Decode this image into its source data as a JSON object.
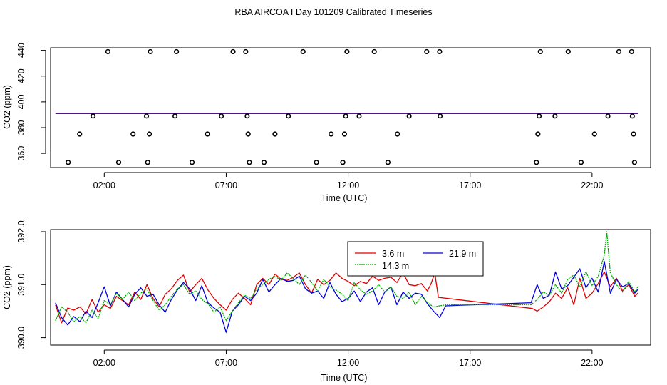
{
  "title": "RBA AIRCOA I  Day 101209  Calibrated Timeseries",
  "chart_data": [
    {
      "type": "scatter",
      "xlabel": "Time (UTC)",
      "ylabel": "CO2 (ppm)",
      "x_ticks": [
        2,
        7,
        12,
        17,
        22
      ],
      "x_tick_labels": [
        "02:00",
        "07:00",
        "12:00",
        "17:00",
        "22:00"
      ],
      "y_ticks": [
        360,
        380,
        400,
        420,
        440
      ],
      "xlim": [
        -0.2,
        24.4
      ],
      "ylim": [
        349,
        442
      ],
      "points_x_hours": [
        0.52,
        0.99,
        1.54,
        2.15,
        2.59,
        3.18,
        3.73,
        3.78,
        3.85,
        3.89,
        4.9,
        4.96,
        5.6,
        6.23,
        6.8,
        7.28,
        7.8,
        7.86,
        7.9,
        7.95,
        8.55,
        9.0,
        9.55,
        10.15,
        10.7,
        11.3,
        11.78,
        11.85,
        11.9,
        11.95,
        12.45,
        13.07,
        13.63,
        14.02,
        14.5,
        15.22,
        15.75,
        15.77,
        19.72,
        19.78,
        19.83,
        19.88,
        20.48,
        21.02,
        21.55,
        22.1,
        22.65,
        23.1,
        23.62,
        23.65,
        23.7,
        23.74
      ],
      "points_y_ppm": [
        353,
        375,
        389,
        439,
        353,
        375,
        389,
        353,
        375,
        439,
        389,
        439,
        353,
        375,
        389,
        439,
        439,
        389,
        375,
        353,
        353,
        375,
        389,
        439,
        353,
        375,
        353,
        375,
        389,
        439,
        389,
        439,
        353,
        375,
        389,
        439,
        439,
        389,
        353,
        375,
        389,
        439,
        389,
        439,
        353,
        375,
        389,
        439,
        439,
        389,
        375,
        353
      ],
      "line_level_ppm": 391
    },
    {
      "type": "line",
      "xlabel": "Time (UTC)",
      "ylabel": "CO2 (ppm)",
      "x_ticks": [
        2,
        7,
        12,
        17,
        22
      ],
      "x_tick_labels": [
        "02:00",
        "07:00",
        "12:00",
        "17:00",
        "22:00"
      ],
      "y_ticks": [
        390.0,
        391.0,
        392.0
      ],
      "y_tick_labels": [
        "390.0",
        "391.0",
        "392.0"
      ],
      "xlim": [
        -0.2,
        24.4
      ],
      "ylim": [
        389.86,
        392.04
      ],
      "legend": {
        "placement": "top-center",
        "entries": [
          "3.6 m",
          "21.9 m",
          "14.3 m"
        ]
      },
      "series": [
        {
          "name": "3.6 m",
          "color": "#dd0000",
          "x": [
            0,
            0.25,
            0.5,
            0.75,
            1.0,
            1.25,
            1.5,
            1.75,
            2.0,
            2.25,
            2.5,
            2.75,
            3.0,
            3.25,
            3.5,
            3.75,
            4.0,
            4.25,
            4.5,
            4.75,
            5.0,
            5.25,
            5.5,
            5.75,
            6.0,
            6.25,
            6.5,
            6.75,
            7.0,
            7.25,
            7.5,
            7.75,
            8.0,
            8.25,
            8.5,
            8.75,
            9.0,
            9.25,
            9.5,
            9.75,
            10.0,
            10.25,
            10.5,
            10.75,
            11.0,
            11.25,
            11.5,
            11.75,
            12.0,
            12.25,
            12.5,
            12.75,
            13.0,
            13.25,
            13.5,
            13.75,
            14.0,
            14.25,
            14.5,
            14.75,
            15.0,
            15.25,
            15.4,
            15.55,
            15.7,
            19.55,
            19.75,
            20.0,
            20.25,
            20.5,
            20.75,
            21.0,
            21.25,
            21.5,
            21.75,
            22.0,
            22.25,
            22.5,
            22.75,
            23.0,
            23.25,
            23.5,
            23.75,
            23.9
          ],
          "y": [
            390.62,
            390.28,
            390.56,
            390.52,
            390.58,
            390.45,
            390.72,
            390.48,
            390.62,
            390.55,
            390.78,
            390.7,
            390.62,
            390.86,
            390.72,
            391.0,
            390.74,
            390.58,
            390.82,
            390.92,
            391.08,
            391.18,
            390.86,
            391.0,
            391.12,
            390.9,
            390.74,
            390.62,
            390.52,
            390.72,
            390.84,
            390.74,
            390.62,
            391.0,
            391.12,
            391.0,
            391.2,
            391.1,
            391.08,
            391.14,
            391.22,
            391.0,
            390.84,
            391.1,
            391.0,
            391.08,
            391.22,
            391.12,
            391.06,
            390.98,
            391.06,
            391.02,
            391.16,
            391.08,
            391.12,
            391.14,
            391.04,
            391.22,
            391.0,
            390.98,
            391.02,
            390.88,
            391.02,
            391.22,
            390.76,
            390.55,
            390.5,
            390.58,
            390.68,
            390.84,
            390.74,
            390.94,
            390.62,
            391.12,
            390.74,
            390.84,
            391.02,
            391.24,
            390.96,
            391.12,
            390.88,
            391.0,
            390.78,
            390.85
          ]
        },
        {
          "name": "21.9 m",
          "color": "#0000dd",
          "x": [
            0,
            0.25,
            0.5,
            0.75,
            1.0,
            1.25,
            1.5,
            1.75,
            2.0,
            2.25,
            2.5,
            2.75,
            3.0,
            3.25,
            3.5,
            3.75,
            4.0,
            4.25,
            4.5,
            4.75,
            5.0,
            5.25,
            5.5,
            5.75,
            6.0,
            6.25,
            6.5,
            6.75,
            7.0,
            7.25,
            7.5,
            7.75,
            8.0,
            8.25,
            8.5,
            8.75,
            9.0,
            9.25,
            9.5,
            9.75,
            10.0,
            10.25,
            10.5,
            10.75,
            11.0,
            11.25,
            11.5,
            11.75,
            12.0,
            12.25,
            12.5,
            12.75,
            13.0,
            13.25,
            13.5,
            13.75,
            14.0,
            14.25,
            14.5,
            14.75,
            15.0,
            15.25,
            15.5,
            15.75,
            16.0,
            19.5,
            19.75,
            20.0,
            20.25,
            20.5,
            20.75,
            21.0,
            21.25,
            21.5,
            21.75,
            22.0,
            22.25,
            22.5,
            22.75,
            23.0,
            23.25,
            23.5,
            23.75,
            23.9
          ],
          "y": [
            390.66,
            390.38,
            390.24,
            390.4,
            390.3,
            390.5,
            390.38,
            390.66,
            390.96,
            390.6,
            390.86,
            390.72,
            390.58,
            390.82,
            390.94,
            390.78,
            390.82,
            390.62,
            390.48,
            390.72,
            390.9,
            391.04,
            390.92,
            390.7,
            390.98,
            390.66,
            390.56,
            390.48,
            390.1,
            390.5,
            390.62,
            390.78,
            390.7,
            390.84,
            391.1,
            390.86,
            391.0,
            391.12,
            391.06,
            391.08,
            391.16,
            390.92,
            390.84,
            390.88,
            390.74,
            391.04,
            390.82,
            390.68,
            390.74,
            390.88,
            390.68,
            390.86,
            390.94,
            390.62,
            390.86,
            390.96,
            390.62,
            390.86,
            390.74,
            390.84,
            390.82,
            390.64,
            390.5,
            390.38,
            390.6,
            390.66,
            391.0,
            390.74,
            390.8,
            391.24,
            390.92,
            390.98,
            391.14,
            391.3,
            390.94,
            391.12,
            390.86,
            391.44,
            390.84,
            391.1,
            390.96,
            391.02,
            390.84,
            390.92
          ]
        },
        {
          "name": "14.3 m",
          "color": "#00aa00",
          "x": [
            0,
            0.25,
            0.5,
            0.75,
            1.0,
            1.25,
            1.5,
            1.75,
            2.0,
            2.25,
            2.5,
            2.75,
            3.0,
            3.25,
            3.5,
            3.75,
            4.0,
            4.25,
            4.5,
            4.75,
            5.0,
            5.25,
            5.5,
            5.75,
            6.0,
            6.25,
            6.5,
            6.75,
            7.0,
            7.25,
            7.5,
            7.75,
            8.0,
            8.25,
            8.5,
            8.75,
            9.0,
            9.25,
            9.5,
            9.75,
            10.0,
            10.25,
            10.5,
            10.75,
            11.0,
            11.25,
            11.5,
            11.75,
            12.0,
            12.25,
            12.5,
            12.75,
            13.0,
            13.25,
            13.5,
            13.75,
            14.0,
            14.25,
            14.5,
            14.75,
            15.0,
            15.25,
            15.5,
            15.75,
            16.0,
            19.5,
            19.75,
            20.0,
            20.25,
            20.5,
            20.75,
            21.0,
            21.25,
            21.5,
            21.75,
            22.0,
            22.25,
            22.5,
            22.6,
            22.75,
            23.0,
            23.25,
            23.5,
            23.75,
            23.9
          ],
          "y": [
            390.32,
            390.58,
            390.48,
            390.3,
            390.4,
            390.28,
            390.52,
            390.36,
            390.7,
            390.62,
            390.84,
            390.72,
            390.86,
            390.7,
            390.84,
            390.92,
            390.7,
            390.52,
            390.62,
            390.78,
            390.92,
            391.0,
            390.82,
            390.88,
            390.72,
            390.64,
            390.48,
            390.58,
            390.32,
            390.5,
            390.66,
            390.8,
            390.74,
            390.92,
            391.0,
            391.1,
            391.16,
            391.08,
            391.22,
            391.12,
            391.0,
            391.18,
            391.04,
            390.88,
            391.1,
            390.96,
            390.9,
            390.82,
            390.7,
            391.04,
            390.9,
            390.82,
            390.88,
            391.0,
            390.86,
            390.96,
            390.78,
            390.74,
            390.86,
            390.62,
            390.78,
            390.66,
            390.58,
            390.6,
            390.62,
            390.62,
            390.72,
            390.86,
            390.8,
            391.0,
            390.84,
            391.1,
            391.18,
            390.96,
            391.24,
            390.98,
            391.16,
            391.56,
            392.0,
            391.22,
            391.0,
            390.86,
            391.06,
            390.86,
            390.98
          ]
        }
      ]
    }
  ]
}
